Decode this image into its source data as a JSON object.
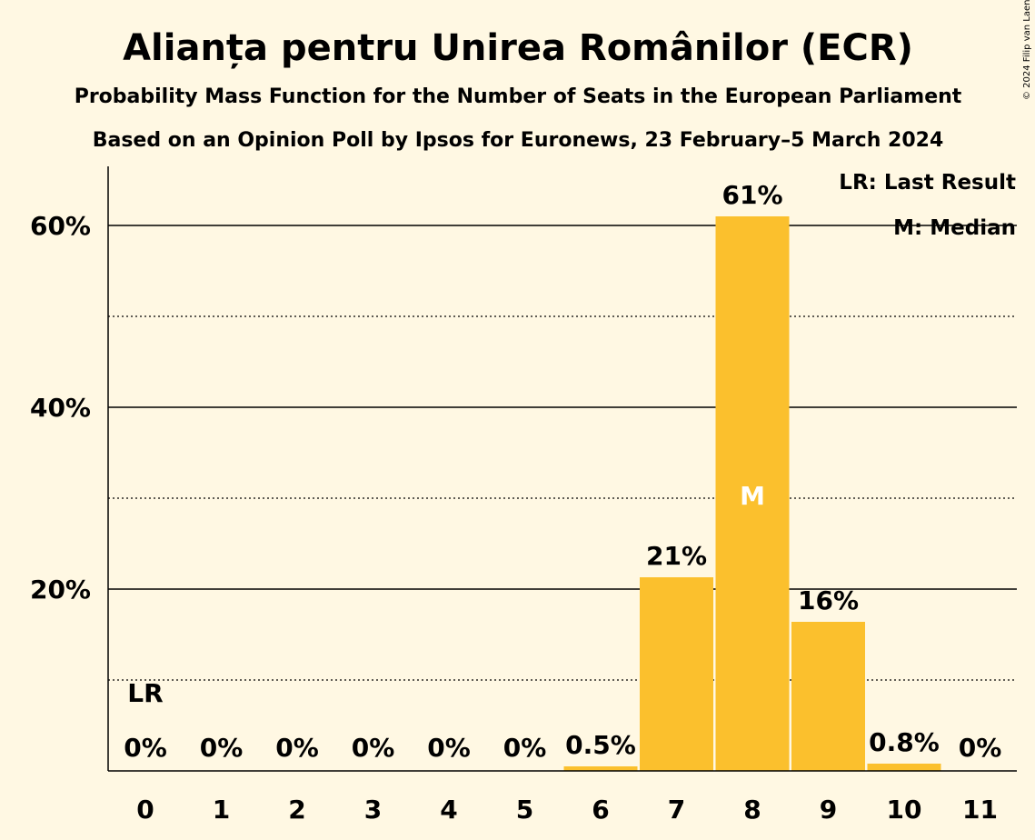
{
  "copyright": "© 2024 Filip van Laenen",
  "chart_data": {
    "type": "bar",
    "title": "Alianța pentru Unirea Românilor (ECR)",
    "subtitle_1": "Probability Mass Function for the Number of Seats in the European Parliament",
    "subtitle_2": "Based on an Opinion Poll by Ipsos for Euronews, 23 February–5 March 2024",
    "categories": [
      "0",
      "1",
      "2",
      "3",
      "4",
      "5",
      "6",
      "7",
      "8",
      "9",
      "10",
      "11"
    ],
    "values": [
      0,
      0,
      0,
      0,
      0,
      0,
      0.5,
      21.3,
      61.0,
      16.4,
      0.8,
      0
    ],
    "data_labels": [
      "0%",
      "0%",
      "0%",
      "0%",
      "0%",
      "0%",
      "0.5%",
      "21%",
      "61%",
      "16%",
      "0.8%",
      "0%"
    ],
    "ylim": [
      0,
      66.5
    ],
    "yticks": [
      20,
      40,
      60
    ],
    "ytick_labels": [
      "20%",
      "40%",
      "60%"
    ],
    "minor_gridlines": [
      10,
      30,
      50
    ],
    "bar_color": "#fbc02d",
    "last_result": {
      "category": "0",
      "label": "LR"
    },
    "median": {
      "category": "8",
      "label": "M"
    },
    "legend": {
      "position": "top-right",
      "entries": [
        "LR: Last Result",
        "M: Median"
      ]
    }
  }
}
